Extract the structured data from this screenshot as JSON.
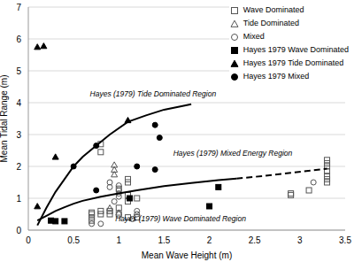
{
  "chart_data": {
    "type": "scatter",
    "xlabel": "Mean Wave Height (m)",
    "ylabel": "Mean Tidal Range (m)",
    "xlim": [
      0,
      3.5
    ],
    "xticks": [
      0,
      0.5,
      1,
      1.5,
      2,
      2.5,
      3,
      3.5
    ],
    "ylim": [
      0,
      7
    ],
    "yticks": [
      0,
      1,
      2,
      3,
      4,
      5,
      6,
      7
    ],
    "grid": true,
    "legend": "top right",
    "series": [
      {
        "name": "Wave Dominated",
        "type": "scatter",
        "marker": "square-open",
        "color": "#555555",
        "x": [
          0.7,
          0.7,
          0.7,
          0.7,
          0.8,
          0.8,
          0.8,
          0.8,
          0.9,
          0.9,
          1.0,
          1.0,
          1.0,
          1.1,
          1.1,
          1.1,
          1.1,
          1.1,
          1.2,
          1.2,
          2.9,
          2.9,
          3.1,
          3.3,
          3.3,
          3.3,
          3.3,
          3.3,
          3.3,
          3.3
        ],
        "values": [
          0.3,
          0.4,
          0.5,
          0.55,
          0.6,
          0.5,
          2.7,
          2.45,
          0.5,
          0.6,
          0.7,
          0.5,
          1.3,
          1.6,
          1.5,
          1.1,
          0.9,
          0.4,
          1.0,
          0.4,
          1.1,
          1.15,
          1.25,
          1.5,
          1.6,
          1.7,
          1.85,
          2.0,
          2.1,
          2.2
        ]
      },
      {
        "name": "Tide Dominated",
        "type": "scatter",
        "marker": "triangle-open",
        "color": "#555555",
        "x": [
          0.95,
          0.95,
          0.95,
          0.9,
          1.0
        ],
        "values": [
          2.05,
          1.9,
          1.75,
          0.7,
          0.55
        ]
      },
      {
        "name": "Mixed",
        "type": "scatter",
        "marker": "circle-open",
        "color": "#555555",
        "x": [
          0.8,
          0.9,
          0.9,
          1.0,
          1.0,
          1.0,
          1.0,
          1.2,
          1.2,
          1.15,
          0.7,
          3.15,
          0.95
        ],
        "values": [
          0.2,
          1.5,
          1.35,
          1.4,
          1.25,
          1.15,
          1.05,
          0.6,
          0.5,
          0.35,
          0.2,
          1.5,
          0.9
        ]
      },
      {
        "name": "Hayes 1979 Wave Dominated",
        "type": "scatter",
        "marker": "square",
        "color": "#000000",
        "x": [
          0.25,
          0.3,
          0.4,
          1.12,
          2.0,
          2.1
        ],
        "values": [
          0.3,
          0.28,
          0.28,
          1.0,
          0.75,
          1.35
        ]
      },
      {
        "name": "Hayes 1979 Tide Dominated",
        "type": "scatter",
        "marker": "triangle",
        "color": "#000000",
        "x": [
          0.1,
          0.17,
          0.1,
          0.3,
          1.1
        ],
        "values": [
          5.75,
          5.78,
          0.75,
          2.3,
          3.45
        ]
      },
      {
        "name": "Hayes 1979 Mixed",
        "type": "scatter",
        "marker": "circle",
        "color": "#000000",
        "x": [
          0.5,
          0.75,
          0.75,
          1.2,
          1.4,
          1.45,
          1.4
        ],
        "values": [
          2.0,
          2.65,
          1.25,
          2.0,
          3.3,
          2.9,
          1.9
        ]
      },
      {
        "type": "line",
        "color": "#000000",
        "line_style": "solid",
        "x": [
          0.1,
          0.2,
          0.3,
          0.4,
          0.5,
          0.6,
          0.75,
          0.9,
          1.1,
          1.3,
          1.5,
          1.8
        ],
        "values": [
          0.15,
          0.7,
          1.2,
          1.6,
          2.0,
          2.3,
          2.65,
          3.0,
          3.4,
          3.6,
          3.78,
          3.95
        ]
      },
      {
        "type": "line",
        "color": "#000000",
        "line_style": "solid",
        "x": [
          0.1,
          0.2,
          0.3,
          0.4,
          0.5,
          0.6,
          0.8,
          1.0,
          1.2,
          1.5,
          1.8,
          2.1,
          2.3
        ],
        "values": [
          0.3,
          0.45,
          0.6,
          0.72,
          0.83,
          0.92,
          1.05,
          1.15,
          1.25,
          1.38,
          1.48,
          1.57,
          1.62
        ]
      },
      {
        "type": "line",
        "color": "#000000",
        "line_style": "dashed",
        "x": [
          2.3,
          2.6,
          2.9,
          3.3
        ],
        "values": [
          1.62,
          1.7,
          1.8,
          1.93
        ]
      }
    ],
    "annotations": [
      {
        "text": "Hayes (1979) Tide Dominated Region",
        "x": 0.68,
        "y": 4.25
      },
      {
        "text": "Hayes (1979) Mixed Energy Region",
        "x": 1.6,
        "y": 2.4
      },
      {
        "text": "Hayes (1979) Wave Dominated Region",
        "x": 0.96,
        "y": 0.35
      }
    ]
  }
}
